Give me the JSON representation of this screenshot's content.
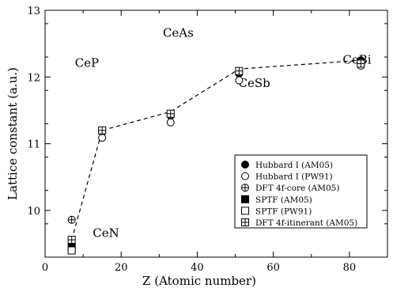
{
  "chart_data": {
    "type": "scatter",
    "xlabel": "Z  (Atomic number)",
    "ylabel": "Lattice constant  (a.u.)",
    "xlim": [
      0,
      90
    ],
    "ylim": [
      9.3,
      13
    ],
    "xticks": [
      0,
      20,
      40,
      60,
      80
    ],
    "yticks": [
      10,
      11,
      12,
      13
    ],
    "grid": false,
    "legend_position": "bottom-right",
    "annotations": [
      {
        "text": "CeAs",
        "x": 35,
        "y": 12.6
      },
      {
        "text": "CeP",
        "x": 11,
        "y": 12.15
      },
      {
        "text": "CeSb",
        "x": 55,
        "y": 11.85
      },
      {
        "text": "CeBi",
        "x": 82,
        "y": 12.2
      },
      {
        "text": "CeN",
        "x": 16,
        "y": 9.6
      }
    ],
    "dashed_line": {
      "x": [
        7,
        15,
        33,
        51,
        83
      ],
      "y": [
        9.56,
        11.2,
        11.48,
        12.12,
        12.25
      ]
    },
    "series": [
      {
        "name": "Hubbard I  (AM05)",
        "marker": "filled-circle",
        "x": [
          15,
          33,
          51,
          83
        ],
        "y": [
          11.18,
          11.42,
          12.05,
          12.25
        ]
      },
      {
        "name": "Hubbard I  (PW91)",
        "marker": "open-circle",
        "x": [
          15,
          33,
          51,
          83
        ],
        "y": [
          11.09,
          11.32,
          11.95,
          12.17
        ]
      },
      {
        "name": "DFT 4f-core (AM05)",
        "marker": "crossed-circle",
        "x": [
          7,
          15,
          33,
          51,
          83
        ],
        "y": [
          9.86,
          11.19,
          11.43,
          12.07,
          12.22
        ]
      },
      {
        "name": "SPTF (AM05)",
        "marker": "filled-square",
        "x": [
          7
        ],
        "y": [
          9.45
        ]
      },
      {
        "name": "SPTF (PW91)",
        "marker": "open-square",
        "x": [
          7
        ],
        "y": [
          9.4
        ]
      },
      {
        "name": "DFT 4f-itinerant (AM05)",
        "marker": "hatched-square",
        "x": [
          7,
          15,
          33,
          51,
          83
        ],
        "y": [
          9.56,
          11.2,
          11.45,
          12.09,
          12.2
        ]
      }
    ]
  }
}
